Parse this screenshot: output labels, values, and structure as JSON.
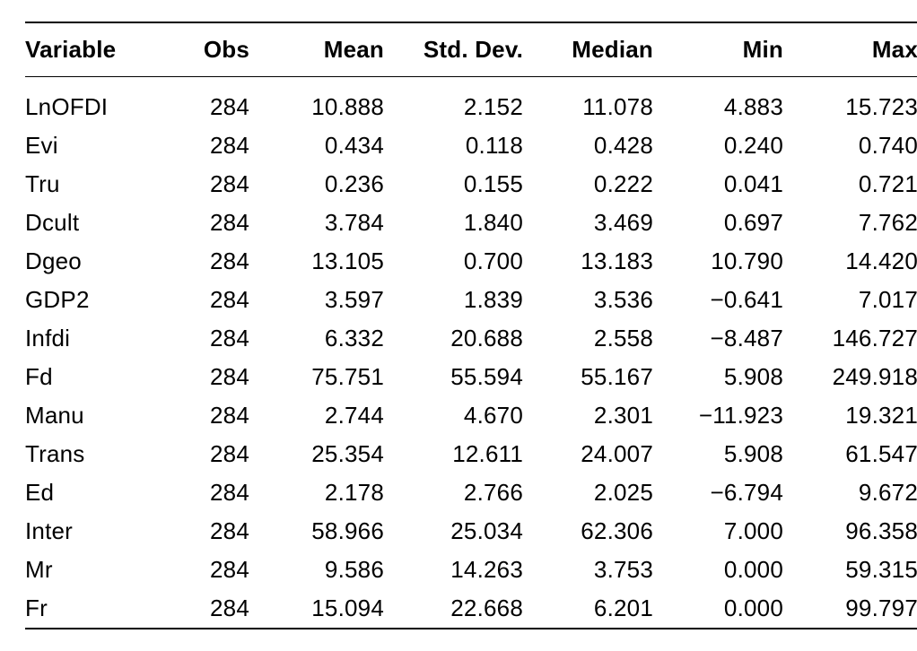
{
  "type": "table",
  "background_color": "#ffffff",
  "text_color": "#000000",
  "border_color": "#000000",
  "font_family": "Helvetica Neue, Helvetica, Arial, sans-serif",
  "header_font_weight": 700,
  "body_font_weight": 400,
  "font_size_pt": 20,
  "columns": [
    {
      "key": "variable",
      "label": "Variable",
      "align": "left"
    },
    {
      "key": "obs",
      "label": "Obs",
      "align": "right"
    },
    {
      "key": "mean",
      "label": "Mean",
      "align": "right"
    },
    {
      "key": "std",
      "label": "Std. Dev.",
      "align": "right"
    },
    {
      "key": "median",
      "label": "Median",
      "align": "right"
    },
    {
      "key": "min",
      "label": "Min",
      "align": "right"
    },
    {
      "key": "max",
      "label": "Max",
      "align": "right"
    }
  ],
  "rows": [
    [
      "LnOFDI",
      "284",
      "10.888",
      "2.152",
      "11.078",
      "4.883",
      "15.723"
    ],
    [
      "Evi",
      "284",
      "0.434",
      "0.118",
      "0.428",
      "0.240",
      "0.740"
    ],
    [
      "Tru",
      "284",
      "0.236",
      "0.155",
      "0.222",
      "0.041",
      "0.721"
    ],
    [
      "Dcult",
      "284",
      "3.784",
      "1.840",
      "3.469",
      "0.697",
      "7.762"
    ],
    [
      "Dgeo",
      "284",
      "13.105",
      "0.700",
      "13.183",
      "10.790",
      "14.420"
    ],
    [
      "GDP2",
      "284",
      "3.597",
      "1.839",
      "3.536",
      "−0.641",
      "7.017"
    ],
    [
      "Infdi",
      "284",
      "6.332",
      "20.688",
      "2.558",
      "−8.487",
      "146.727"
    ],
    [
      "Fd",
      "284",
      "75.751",
      "55.594",
      "55.167",
      "5.908",
      "249.918"
    ],
    [
      "Manu",
      "284",
      "2.744",
      "4.670",
      "2.301",
      "−11.923",
      "19.321"
    ],
    [
      "Trans",
      "284",
      "25.354",
      "12.611",
      "24.007",
      "5.908",
      "61.547"
    ],
    [
      "Ed",
      "284",
      "2.178",
      "2.766",
      "2.025",
      "−6.794",
      "9.672"
    ],
    [
      "Inter",
      "284",
      "58.966",
      "25.034",
      "62.306",
      "7.000",
      "96.358"
    ],
    [
      "Mr",
      "284",
      "9.586",
      "14.263",
      "3.753",
      "0.000",
      "59.315"
    ],
    [
      "Fr",
      "284",
      "15.094",
      "22.668",
      "6.201",
      "0.000",
      "99.797"
    ]
  ]
}
